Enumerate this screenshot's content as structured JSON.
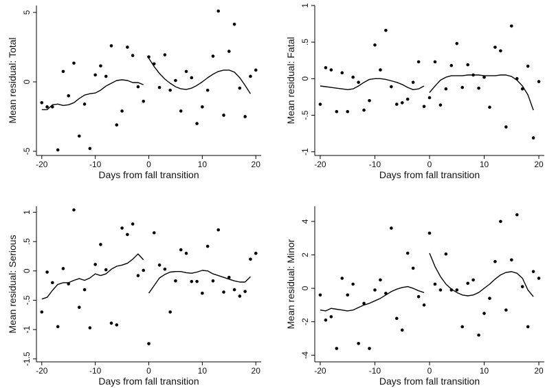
{
  "chart_data": [
    {
      "type": "scatter",
      "title": "",
      "xlabel": "Days from fall transition",
      "ylabel": "Mean residual: Total",
      "xlim": [
        -21,
        21
      ],
      "ylim": [
        -5.3,
        5.5
      ],
      "grid": false,
      "x_ticks": [
        -20,
        -10,
        0,
        10,
        20
      ],
      "x_tick_labels": [
        "-20",
        "-10",
        "0",
        "10",
        "20"
      ],
      "y_ticks": [
        -5,
        0,
        5
      ],
      "y_tick_labels": [
        "-5",
        "0",
        "5"
      ],
      "series": [
        {
          "type": "scatter",
          "x": [
            -20,
            -19,
            -18,
            -17,
            -16,
            -15,
            -14,
            -13,
            -12,
            -11,
            -10,
            -9,
            -8,
            -7,
            -6,
            -5,
            -4,
            -3,
            -2,
            -1,
            0,
            1,
            2,
            3,
            4,
            5,
            6,
            7,
            8,
            9,
            10,
            11,
            12,
            13,
            14,
            15,
            16,
            17,
            18,
            19,
            20
          ],
          "y": [
            -1.5,
            -1.8,
            -1.8,
            -4.9,
            0.75,
            -1.0,
            1.35,
            -3.9,
            -1.6,
            -4.8,
            0.5,
            1.15,
            0.4,
            2.6,
            -3.1,
            -2.1,
            2.5,
            1.9,
            -0.35,
            -1.4,
            1.8,
            1.3,
            -0.4,
            1.95,
            -0.6,
            0.1,
            -2.1,
            0.75,
            0.3,
            -3.0,
            -1.8,
            -0.6,
            1.85,
            5.1,
            -2.4,
            2.2,
            4.15,
            -0.45,
            -2.5,
            0.4,
            0.85
          ]
        },
        {
          "type": "line",
          "x": [
            -20,
            -19,
            -18,
            -17,
            -16,
            -15,
            -14,
            -13,
            -12,
            -11,
            -10,
            -9,
            -8,
            -7,
            -6,
            -5,
            -4,
            -3,
            -2,
            -1
          ],
          "y": [
            -2.0,
            -2.0,
            -1.65,
            -1.6,
            -1.7,
            -1.65,
            -1.5,
            -1.2,
            -0.95,
            -0.85,
            -0.8,
            -0.6,
            -0.3,
            -0.1,
            0.1,
            0.15,
            0.1,
            -0.05,
            -0.05,
            -0.2
          ]
        },
        {
          "type": "line",
          "x": [
            0,
            1,
            2,
            3,
            4,
            5,
            6,
            7,
            8,
            9,
            10,
            11,
            12,
            13,
            14,
            15,
            16,
            17,
            18,
            19
          ],
          "y": [
            1.7,
            1.1,
            0.6,
            0.2,
            -0.1,
            -0.35,
            -0.5,
            -0.55,
            -0.45,
            -0.25,
            0.0,
            0.3,
            0.55,
            0.75,
            0.85,
            0.85,
            0.7,
            0.3,
            -0.25,
            -0.85
          ]
        }
      ]
    },
    {
      "type": "scatter",
      "title": "",
      "xlabel": "Days from fall transition",
      "ylabel": "Mean residual: Fatal",
      "xlim": [
        -21,
        21
      ],
      "ylim": [
        -1.05,
        1.0
      ],
      "grid": false,
      "x_ticks": [
        -20,
        -10,
        0,
        10,
        20
      ],
      "x_tick_labels": [
        "-20",
        "-10",
        "0",
        "10",
        "20"
      ],
      "y_ticks": [
        -1,
        -0.5,
        0,
        0.5,
        1
      ],
      "y_tick_labels": [
        "-1",
        "-.5",
        "0",
        ".5",
        "1"
      ],
      "series": [
        {
          "type": "scatter",
          "x": [
            -20,
            -19,
            -18,
            -17,
            -16,
            -15,
            -14,
            -13,
            -12,
            -11,
            -10,
            -9,
            -8,
            -7,
            -6,
            -5,
            -4,
            -3,
            -2,
            -1,
            0,
            1,
            2,
            3,
            4,
            5,
            6,
            7,
            8,
            9,
            10,
            11,
            12,
            13,
            14,
            15,
            16,
            17,
            18,
            19,
            20
          ],
          "y": [
            -0.35,
            0.15,
            0.12,
            -0.45,
            0.08,
            -0.45,
            0.02,
            -0.05,
            -0.43,
            -0.3,
            0.46,
            0.12,
            0.66,
            -0.11,
            -0.35,
            -0.33,
            -0.28,
            -0.05,
            0.23,
            -0.38,
            -0.26,
            0.23,
            -0.36,
            -0.14,
            0.18,
            0.48,
            -0.12,
            0.19,
            0.05,
            -0.13,
            0.02,
            -0.39,
            0.43,
            0.38,
            -0.66,
            0.72,
            0.0,
            -0.14,
            0.17,
            -0.81,
            -0.04
          ]
        },
        {
          "type": "line",
          "x": [
            -20,
            -19,
            -18,
            -17,
            -16,
            -15,
            -14,
            -13,
            -12,
            -11,
            -10,
            -9,
            -8,
            -7,
            -6,
            -5,
            -4,
            -3,
            -2,
            -1
          ],
          "y": [
            -0.1,
            -0.11,
            -0.12,
            -0.13,
            -0.14,
            -0.15,
            -0.14,
            -0.1,
            -0.05,
            -0.01,
            0.0,
            0.0,
            -0.01,
            -0.03,
            -0.05,
            -0.08,
            -0.12,
            -0.15,
            -0.14,
            -0.1
          ]
        },
        {
          "type": "line",
          "x": [
            0,
            1,
            2,
            3,
            4,
            5,
            6,
            7,
            8,
            9,
            10,
            11,
            12,
            13,
            14,
            15,
            16,
            17,
            18,
            19
          ],
          "y": [
            -0.19,
            -0.1,
            -0.02,
            0.02,
            0.04,
            0.04,
            0.04,
            0.05,
            0.05,
            0.05,
            0.04,
            0.04,
            0.04,
            0.05,
            0.05,
            0.03,
            -0.02,
            -0.1,
            -0.22,
            -0.43
          ]
        }
      ]
    },
    {
      "type": "scatter",
      "title": "",
      "xlabel": "Days from fall transition",
      "ylabel": "Mean residual: Serious",
      "xlim": [
        -21,
        21
      ],
      "ylim": [
        -1.55,
        1.1
      ],
      "grid": false,
      "x_ticks": [
        -20,
        -10,
        0,
        10,
        20
      ],
      "x_tick_labels": [
        "-20",
        "-10",
        "0",
        "10",
        "20"
      ],
      "y_ticks": [
        -1.5,
        -1,
        -0.5,
        0,
        0.5,
        1
      ],
      "y_tick_labels": [
        "-1.5",
        "-1",
        "-.5",
        "0",
        ".5",
        "1"
      ],
      "series": [
        {
          "type": "scatter",
          "x": [
            -20,
            -19,
            -18,
            -17,
            -16,
            -15,
            -14,
            -13,
            -12,
            -11,
            -10,
            -9,
            -8,
            -7,
            -6,
            -5,
            -4,
            -3,
            -2,
            -1,
            0,
            1,
            2,
            3,
            4,
            5,
            6,
            7,
            8,
            9,
            10,
            11,
            12,
            13,
            14,
            15,
            16,
            17,
            18,
            19,
            20
          ],
          "y": [
            -0.7,
            -0.02,
            -0.2,
            -0.95,
            0.04,
            -0.22,
            1.04,
            -0.62,
            -0.32,
            -0.97,
            0.11,
            0.45,
            0.02,
            -0.89,
            -0.92,
            0.73,
            0.62,
            0.8,
            -0.08,
            0.01,
            -1.24,
            0.65,
            0.1,
            0.03,
            -0.7,
            -0.17,
            0.36,
            0.3,
            -0.18,
            -0.18,
            -0.38,
            0.42,
            -0.17,
            0.7,
            -0.36,
            -0.11,
            -0.32,
            -0.43,
            -0.35,
            0.2,
            0.3
          ]
        },
        {
          "type": "line",
          "x": [
            -20,
            -19,
            -18,
            -17,
            -16,
            -15,
            -14,
            -13,
            -12,
            -11,
            -10,
            -9,
            -8,
            -7,
            -6,
            -5,
            -4,
            -3,
            -2,
            -1
          ],
          "y": [
            -0.48,
            -0.45,
            -0.33,
            -0.23,
            -0.2,
            -0.2,
            -0.16,
            -0.13,
            -0.16,
            -0.12,
            -0.05,
            -0.08,
            -0.05,
            0.03,
            0.08,
            0.1,
            0.13,
            0.2,
            0.29,
            0.19
          ]
        },
        {
          "type": "line",
          "x": [
            0,
            1,
            2,
            3,
            4,
            5,
            6,
            7,
            8,
            9,
            10,
            11,
            12,
            13,
            14,
            15,
            16,
            17,
            18,
            19
          ],
          "y": [
            -0.38,
            -0.25,
            -0.12,
            -0.06,
            -0.02,
            -0.01,
            -0.01,
            -0.03,
            -0.04,
            -0.02,
            0.01,
            0.0,
            -0.05,
            -0.08,
            -0.11,
            -0.14,
            -0.17,
            -0.19,
            -0.19,
            -0.1
          ]
        }
      ]
    },
    {
      "type": "scatter",
      "title": "",
      "xlabel": "Days from fall transition",
      "ylabel": "Mean residual: Minor",
      "xlim": [
        -21,
        21
      ],
      "ylim": [
        -4.4,
        4.9
      ],
      "grid": false,
      "x_ticks": [
        -20,
        -10,
        0,
        10,
        20
      ],
      "x_tick_labels": [
        "-20",
        "-10",
        "0",
        "10",
        "20"
      ],
      "y_ticks": [
        -4,
        -2,
        0,
        2,
        4
      ],
      "y_tick_labels": [
        "-4",
        "-2",
        "0",
        "2",
        "4"
      ],
      "series": [
        {
          "type": "scatter",
          "x": [
            -20,
            -19,
            -18,
            -17,
            -16,
            -15,
            -14,
            -13,
            -12,
            -11,
            -10,
            -9,
            -8,
            -7,
            -6,
            -5,
            -4,
            -3,
            -2,
            -1,
            0,
            1,
            2,
            3,
            4,
            5,
            6,
            7,
            8,
            9,
            10,
            11,
            12,
            13,
            14,
            15,
            16,
            17,
            18,
            19,
            20
          ],
          "y": [
            -0.4,
            -1.9,
            -1.7,
            -3.6,
            0.6,
            -0.4,
            0.25,
            -3.3,
            -0.9,
            -3.6,
            -0.1,
            0.5,
            -0.3,
            3.6,
            -1.8,
            -2.5,
            2.1,
            1.2,
            -0.5,
            -1.0,
            3.3,
            0.25,
            -0.1,
            2.05,
            -0.1,
            -0.1,
            -2.3,
            0.3,
            0.5,
            -2.8,
            -1.5,
            -0.6,
            1.6,
            4.0,
            -1.3,
            1.7,
            4.4,
            0.1,
            -2.3,
            1.0,
            0.6
          ]
        },
        {
          "type": "line",
          "x": [
            -20,
            -19,
            -18,
            -17,
            -16,
            -15,
            -14,
            -13,
            -12,
            -11,
            -10,
            -9,
            -8,
            -7,
            -6,
            -5,
            -4,
            -3,
            -2,
            -1
          ],
          "y": [
            -1.3,
            -1.35,
            -1.2,
            -1.25,
            -1.3,
            -1.35,
            -1.3,
            -1.15,
            -1.0,
            -0.9,
            -0.75,
            -0.6,
            -0.4,
            -0.2,
            -0.05,
            0.05,
            0.1,
            0.0,
            -0.15,
            -0.25
          ]
        },
        {
          "type": "line",
          "x": [
            0,
            1,
            2,
            3,
            4,
            5,
            6,
            7,
            8,
            9,
            10,
            11,
            12,
            13,
            14,
            15,
            16,
            17,
            18,
            19
          ],
          "y": [
            2.1,
            1.3,
            0.7,
            0.25,
            -0.05,
            -0.25,
            -0.4,
            -0.45,
            -0.4,
            -0.25,
            0.0,
            0.25,
            0.55,
            0.8,
            0.95,
            1.0,
            0.9,
            0.6,
            -0.1,
            -0.5
          ]
        }
      ]
    }
  ]
}
